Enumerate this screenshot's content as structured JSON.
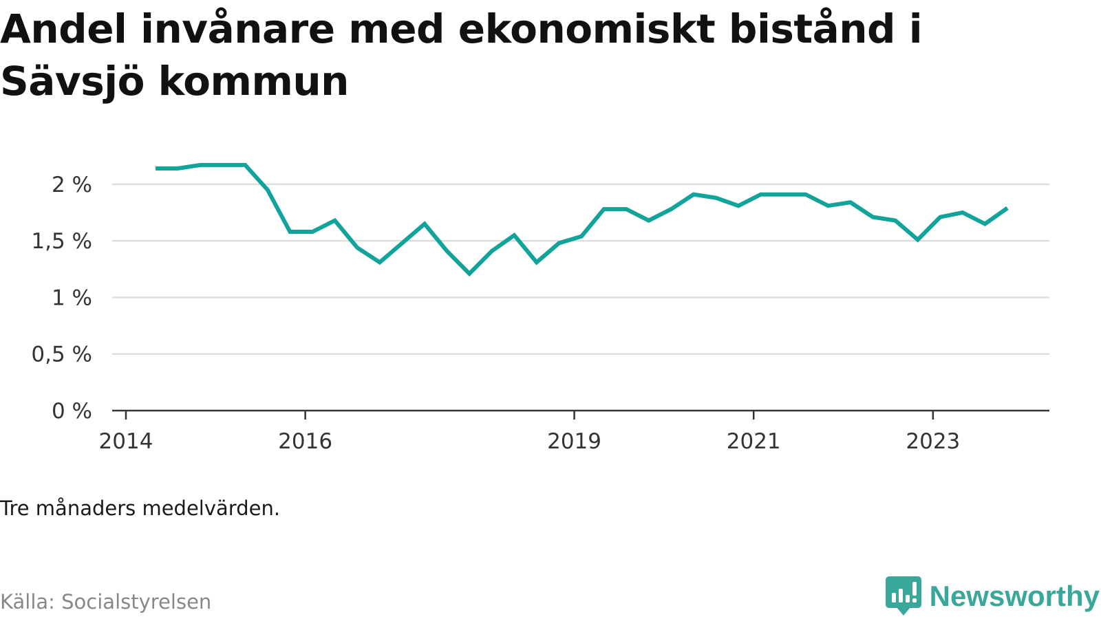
{
  "title": "Andel invånare med ekonomiskt bistånd i Sävsjö kommun",
  "note": "Tre månaders medelvärden.",
  "source": "Källa: Socialstyrelsen",
  "brand": {
    "name": "Newsworthy",
    "icon": "chat-bars-icon",
    "color": "#3aa79b"
  },
  "colors": {
    "line": "#12a39a",
    "grid": "#dddddd",
    "axis": "#333333"
  },
  "chart_data": {
    "type": "line",
    "title": "Andel invånare med ekonomiskt bistånd i Sävsjö kommun",
    "xlabel": "",
    "ylabel": "",
    "ylim": [
      0,
      2.2
    ],
    "xlim": [
      2014.0,
      2024.42
    ],
    "y_ticks": [
      {
        "value": 0,
        "label": "0 %"
      },
      {
        "value": 0.5,
        "label": "0,5 %"
      },
      {
        "value": 1,
        "label": "1 %"
      },
      {
        "value": 1.5,
        "label": "1,5 %"
      },
      {
        "value": 2,
        "label": "2 %"
      }
    ],
    "x_ticks": [
      {
        "value": 2014,
        "label": "2014"
      },
      {
        "value": 2016,
        "label": "2016"
      },
      {
        "value": 2019,
        "label": "2019"
      },
      {
        "value": 2021,
        "label": "2021"
      },
      {
        "value": 2023,
        "label": "2023"
      }
    ],
    "series": [
      {
        "name": "Andel invånare med ekonomiskt bistånd",
        "x": [
          2014.33,
          2014.58,
          2014.83,
          2015.08,
          2015.33,
          2015.58,
          2015.83,
          2016.08,
          2016.33,
          2016.58,
          2016.83,
          2017.08,
          2017.33,
          2017.58,
          2017.83,
          2018.08,
          2018.33,
          2018.58,
          2018.83,
          2019.08,
          2019.33,
          2019.58,
          2019.83,
          2020.08,
          2020.33,
          2020.58,
          2020.83,
          2021.08,
          2021.33,
          2021.58,
          2021.83,
          2022.08,
          2022.33,
          2022.58,
          2022.83,
          2023.08,
          2023.33,
          2023.58,
          2023.83
        ],
        "values": [
          2.14,
          2.14,
          2.17,
          2.17,
          2.17,
          1.95,
          1.58,
          1.58,
          1.68,
          1.44,
          1.31,
          1.48,
          1.65,
          1.41,
          1.21,
          1.41,
          1.55,
          1.31,
          1.48,
          1.54,
          1.78,
          1.78,
          1.68,
          1.78,
          1.91,
          1.88,
          1.81,
          1.91,
          1.91,
          1.91,
          1.81,
          1.84,
          1.71,
          1.68,
          1.51,
          1.71,
          1.75,
          1.65,
          1.79
        ]
      }
    ]
  }
}
